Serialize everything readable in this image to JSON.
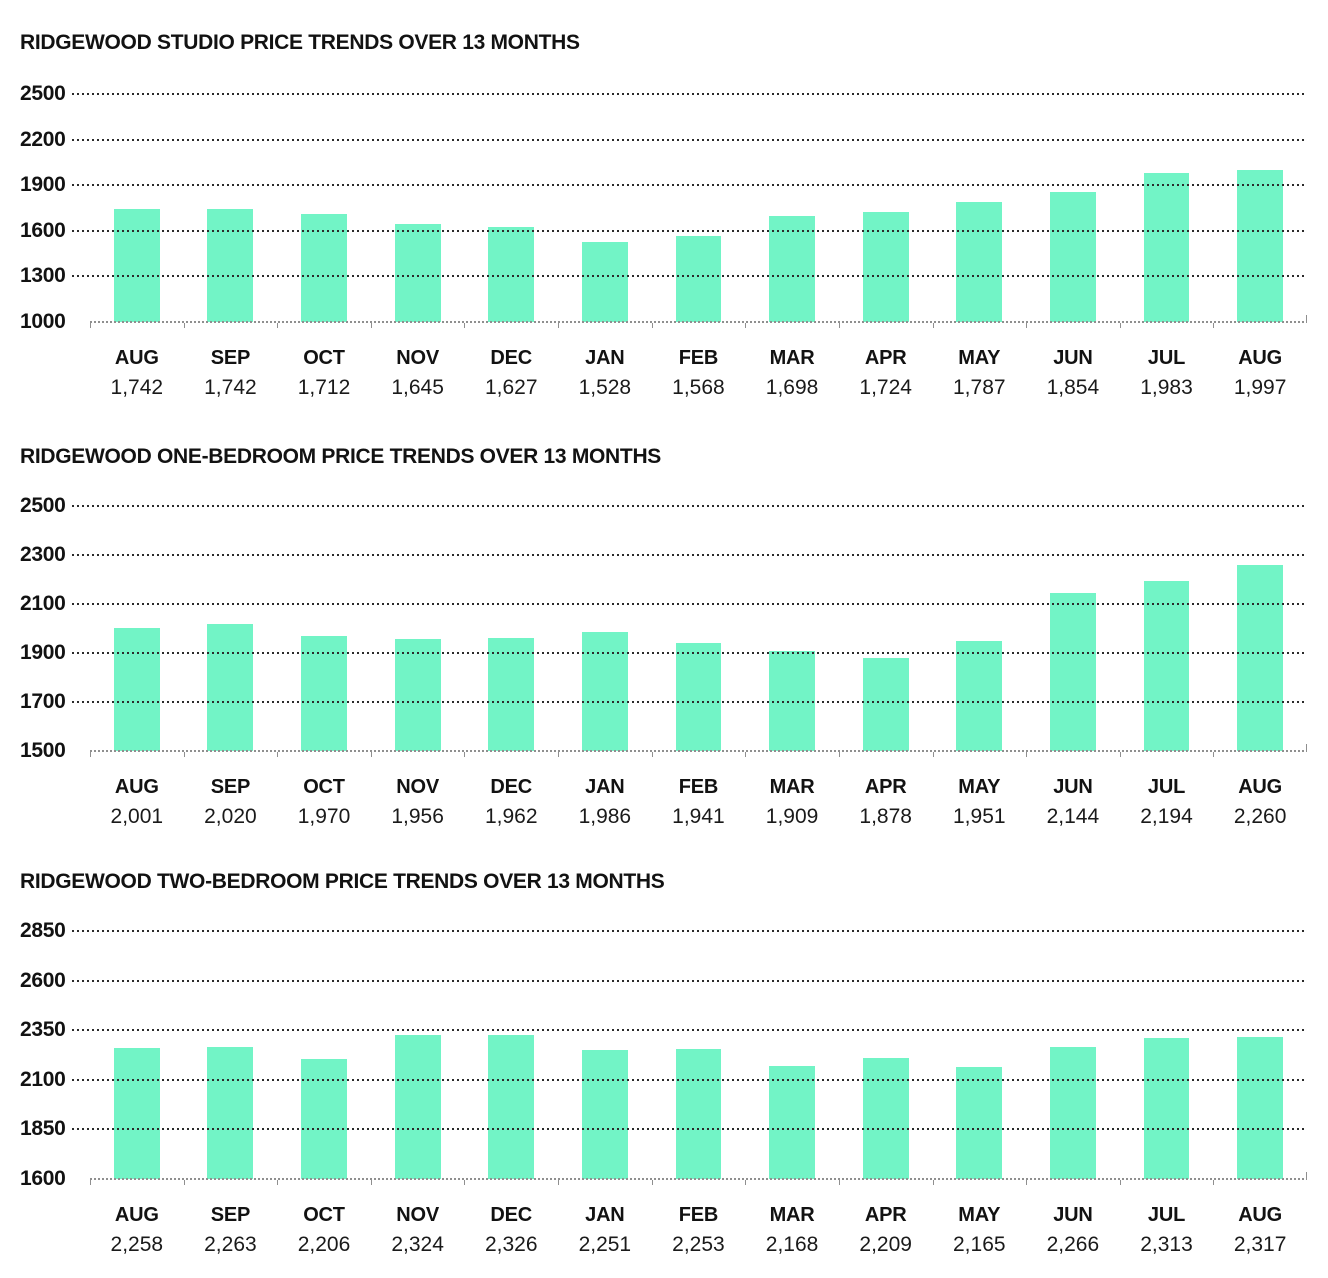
{
  "colors": {
    "bar": "#72F4C6",
    "gridline": "#2a2a2a",
    "axis": "#8f8f8f",
    "text": "#121212"
  },
  "chart_data": [
    {
      "type": "bar",
      "title": "RIDGEWOOD STUDIO PRICE TRENDS OVER 13 MONTHS",
      "categories": [
        "AUG",
        "SEP",
        "OCT",
        "NOV",
        "DEC",
        "JAN",
        "FEB",
        "MAR",
        "APR",
        "MAY",
        "JUN",
        "JUL",
        "AUG"
      ],
      "values": [
        1742,
        1742,
        1712,
        1645,
        1627,
        1528,
        1568,
        1698,
        1724,
        1787,
        1854,
        1983,
        1997
      ],
      "value_labels": [
        "1,742",
        "1,742",
        "1,712",
        "1,645",
        "1,627",
        "1,528",
        "1,568",
        "1,698",
        "1,724",
        "1,787",
        "1,854",
        "1,983",
        "1,997"
      ],
      "yticks": [
        2500,
        2200,
        1900,
        1600,
        1300,
        1000
      ],
      "ylim": [
        1000,
        2500
      ],
      "grid": "dotted-horizontal",
      "legend": "none",
      "bar_color": "#72F4C6"
    },
    {
      "type": "bar",
      "title": "RIDGEWOOD ONE-BEDROOM PRICE TRENDS OVER 13 MONTHS",
      "categories": [
        "AUG",
        "SEP",
        "OCT",
        "NOV",
        "DEC",
        "JAN",
        "FEB",
        "MAR",
        "APR",
        "MAY",
        "JUN",
        "JUL",
        "AUG"
      ],
      "values": [
        2001,
        2020,
        1970,
        1956,
        1962,
        1986,
        1941,
        1909,
        1878,
        1951,
        2144,
        2194,
        2260
      ],
      "value_labels": [
        "2,001",
        "2,020",
        "1,970",
        "1,956",
        "1,962",
        "1,986",
        "1,941",
        "1,909",
        "1,878",
        "1,951",
        "2,144",
        "2,194",
        "2,260"
      ],
      "yticks": [
        2500,
        2300,
        2100,
        1900,
        1700,
        1500
      ],
      "ylim": [
        1500,
        2500
      ],
      "grid": "dotted-horizontal",
      "legend": "none",
      "bar_color": "#72F4C6"
    },
    {
      "type": "bar",
      "title": "RIDGEWOOD TWO-BEDROOM PRICE TRENDS OVER 13 MONTHS",
      "categories": [
        "AUG",
        "SEP",
        "OCT",
        "NOV",
        "DEC",
        "JAN",
        "FEB",
        "MAR",
        "APR",
        "MAY",
        "JUN",
        "JUL",
        "AUG"
      ],
      "values": [
        2258,
        2263,
        2206,
        2324,
        2326,
        2251,
        2253,
        2168,
        2209,
        2165,
        2266,
        2313,
        2317
      ],
      "value_labels": [
        "2,258",
        "2,263",
        "2,206",
        "2,324",
        "2,326",
        "2,251",
        "2,253",
        "2,168",
        "2,209",
        "2,165",
        "2,266",
        "2,313",
        "2,317"
      ],
      "yticks": [
        2850,
        2600,
        2350,
        2100,
        1850,
        1600
      ],
      "ylim": [
        1600,
        2850
      ],
      "grid": "dotted-horizontal",
      "legend": "none",
      "bar_color": "#72F4C6"
    }
  ]
}
